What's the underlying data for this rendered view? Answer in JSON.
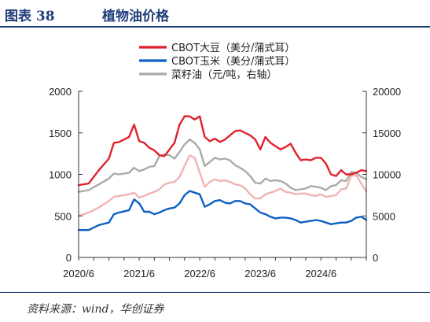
{
  "figure": {
    "number": "图表 38",
    "title": "植物油价格",
    "source": "资料来源：wind，华创证券"
  },
  "chart_data": {
    "type": "line",
    "title": "植物油价格",
    "xlabel": "",
    "ylabel": "",
    "x_tick_labels": [
      "2020/6",
      "2021/6",
      "2022/6",
      "2023/6",
      "2024/6"
    ],
    "y_left": {
      "lim": [
        0,
        2000
      ],
      "ticks": [
        0,
        500,
        1000,
        1500,
        2000
      ]
    },
    "y_right": {
      "lim": [
        0,
        20000
      ],
      "ticks": [
        0,
        5000,
        10000,
        15000,
        20000
      ]
    },
    "grid": false,
    "legend_position": "top-center",
    "x_start": "2020-06",
    "x_end": "2025-03",
    "series": [
      {
        "name": "CBOT大豆（美分/蒲式耳）",
        "axis": "left",
        "color": "#e0212b",
        "x": [
          "2020-06",
          "2020-08",
          "2020-10",
          "2020-12",
          "2021-01",
          "2021-02",
          "2021-04",
          "2021-05",
          "2021-06",
          "2021-07",
          "2021-08",
          "2021-09",
          "2021-10",
          "2021-11",
          "2021-12",
          "2022-01",
          "2022-02",
          "2022-03",
          "2022-04",
          "2022-05",
          "2022-06",
          "2022-07",
          "2022-08",
          "2022-09",
          "2022-10",
          "2022-11",
          "2022-12",
          "2023-01",
          "2023-02",
          "2023-03",
          "2023-04",
          "2023-05",
          "2023-06",
          "2023-07",
          "2023-08",
          "2023-09",
          "2023-10",
          "2023-11",
          "2023-12",
          "2024-01",
          "2024-02",
          "2024-03",
          "2024-04",
          "2024-05",
          "2024-06",
          "2024-07",
          "2024-08",
          "2024-09",
          "2024-10",
          "2024-11",
          "2024-12",
          "2025-01",
          "2025-02",
          "2025-03"
        ],
        "y": [
          870,
          890,
          1050,
          1190,
          1380,
          1390,
          1450,
          1600,
          1400,
          1380,
          1320,
          1290,
          1230,
          1220,
          1300,
          1380,
          1600,
          1700,
          1700,
          1660,
          1700,
          1450,
          1400,
          1430,
          1390,
          1420,
          1470,
          1520,
          1530,
          1500,
          1470,
          1420,
          1300,
          1450,
          1380,
          1340,
          1300,
          1330,
          1370,
          1260,
          1170,
          1180,
          1170,
          1200,
          1200,
          1130,
          1000,
          980,
          1050,
          1000,
          1000,
          1020,
          1050,
          1040
        ]
      },
      {
        "name": "CBOT玉米（美分/蒲式耳）",
        "axis": "left",
        "color": "#0d5fc4",
        "x": [
          "2020-06",
          "2020-08",
          "2020-10",
          "2020-12",
          "2021-01",
          "2021-02",
          "2021-04",
          "2021-05",
          "2021-06",
          "2021-07",
          "2021-08",
          "2021-09",
          "2021-10",
          "2021-11",
          "2021-12",
          "2022-01",
          "2022-02",
          "2022-03",
          "2022-04",
          "2022-05",
          "2022-06",
          "2022-07",
          "2022-08",
          "2022-09",
          "2022-10",
          "2022-11",
          "2022-12",
          "2023-01",
          "2023-02",
          "2023-03",
          "2023-04",
          "2023-05",
          "2023-06",
          "2023-07",
          "2023-08",
          "2023-09",
          "2023-10",
          "2023-11",
          "2023-12",
          "2024-01",
          "2024-02",
          "2024-03",
          "2024-04",
          "2024-05",
          "2024-06",
          "2024-07",
          "2024-08",
          "2024-09",
          "2024-10",
          "2024-11",
          "2024-12",
          "2025-01",
          "2025-02",
          "2025-03"
        ],
        "y": [
          330,
          330,
          390,
          420,
          520,
          540,
          570,
          700,
          650,
          550,
          550,
          520,
          540,
          570,
          590,
          600,
          650,
          750,
          800,
          780,
          760,
          610,
          640,
          680,
          690,
          660,
          650,
          680,
          680,
          650,
          640,
          590,
          540,
          520,
          490,
          470,
          480,
          480,
          470,
          450,
          420,
          430,
          440,
          450,
          440,
          420,
          400,
          410,
          420,
          420,
          440,
          480,
          490,
          450
        ]
      },
      {
        "name": "菜籽油（元/吨，右轴）",
        "axis": "right",
        "color": "#aaaaaa",
        "x": [
          "2020-06",
          "2020-08",
          "2020-10",
          "2020-12",
          "2021-01",
          "2021-02",
          "2021-04",
          "2021-05",
          "2021-06",
          "2021-07",
          "2021-08",
          "2021-09",
          "2021-10",
          "2021-11",
          "2021-12",
          "2022-01",
          "2022-02",
          "2022-03",
          "2022-04",
          "2022-05",
          "2022-06",
          "2022-07",
          "2022-08",
          "2022-09",
          "2022-10",
          "2022-11",
          "2022-12",
          "2023-01",
          "2023-02",
          "2023-03",
          "2023-04",
          "2023-05",
          "2023-06",
          "2023-07",
          "2023-08",
          "2023-09",
          "2023-10",
          "2023-11",
          "2023-12",
          "2024-01",
          "2024-02",
          "2024-03",
          "2024-04",
          "2024-05",
          "2024-06",
          "2024-07",
          "2024-08",
          "2024-09",
          "2024-10",
          "2024-11",
          "2024-12",
          "2025-01",
          "2025-02",
          "2025-03"
        ],
        "y": [
          7900,
          8100,
          8800,
          9500,
          10100,
          10000,
          10200,
          10800,
          10400,
          10600,
          10900,
          11000,
          12200,
          12400,
          12300,
          11900,
          12700,
          13600,
          14200,
          13800,
          13000,
          11000,
          11500,
          12000,
          11800,
          11900,
          11700,
          11100,
          10800,
          10400,
          9800,
          9000,
          8900,
          9500,
          9200,
          9300,
          9200,
          8900,
          8400,
          8100,
          8200,
          8300,
          8600,
          8500,
          8400,
          8100,
          8600,
          8700,
          9300,
          9200,
          10300,
          10200,
          9700,
          9400
        ]
      },
      {
        "name": "",
        "axis": "right",
        "color": "#efb4b4",
        "x": [
          "2020-06",
          "2020-08",
          "2020-10",
          "2020-12",
          "2021-01",
          "2021-02",
          "2021-04",
          "2021-05",
          "2021-06",
          "2021-07",
          "2021-08",
          "2021-09",
          "2021-10",
          "2021-11",
          "2021-12",
          "2022-01",
          "2022-02",
          "2022-03",
          "2022-04",
          "2022-05",
          "2022-06",
          "2022-07",
          "2022-08",
          "2022-09",
          "2022-10",
          "2022-11",
          "2022-12",
          "2023-01",
          "2023-02",
          "2023-03",
          "2023-04",
          "2023-05",
          "2023-06",
          "2023-07",
          "2023-08",
          "2023-09",
          "2023-10",
          "2023-11",
          "2023-12",
          "2024-01",
          "2024-02",
          "2024-03",
          "2024-04",
          "2024-05",
          "2024-06",
          "2024-07",
          "2024-08",
          "2024-09",
          "2024-10",
          "2024-11",
          "2024-12",
          "2025-01",
          "2025-02",
          "2025-03"
        ],
        "y": [
          5000,
          5400,
          6000,
          6800,
          7300,
          7400,
          7600,
          7800,
          7200,
          7400,
          7700,
          7900,
          8200,
          8800,
          9000,
          9100,
          9700,
          11000,
          12300,
          12000,
          10200,
          8500,
          9100,
          9400,
          9200,
          9300,
          9100,
          8800,
          8700,
          8300,
          7600,
          7100,
          7100,
          7600,
          7800,
          8000,
          8300,
          7900,
          7800,
          7600,
          7700,
          7700,
          7500,
          7400,
          7600,
          7300,
          7400,
          7500,
          8200,
          8300,
          9800,
          9900,
          8900,
          7900
        ]
      }
    ]
  }
}
